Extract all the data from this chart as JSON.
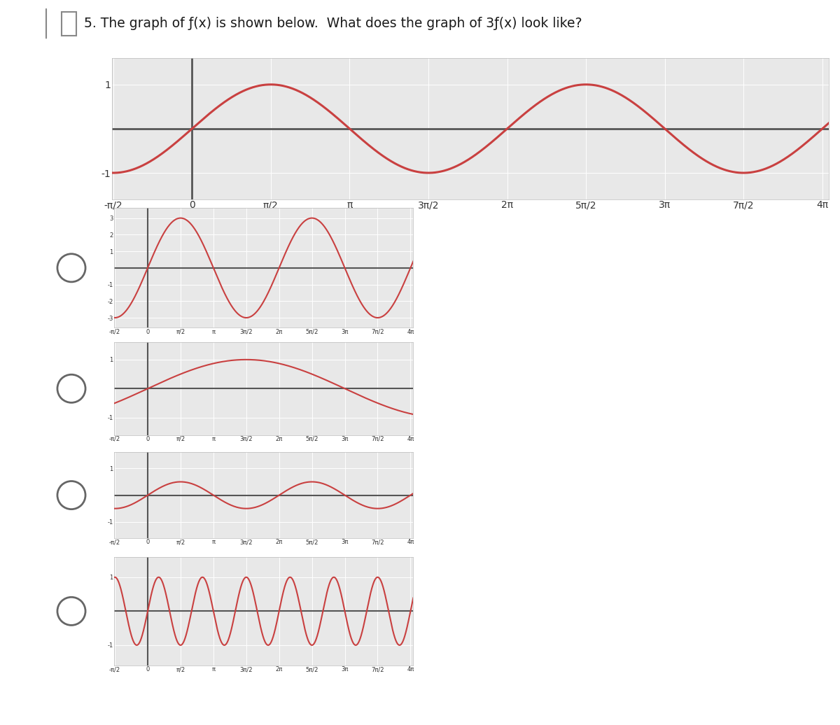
{
  "title_text": "5. The graph of ƒ(x) is shown below.  What does the graph of 3ƒ(x) look like?",
  "main_graph": {
    "xlim": [
      -1.6,
      12.7
    ],
    "ylim": [
      -1.6,
      1.6
    ],
    "ytick_vals": [
      -1,
      1
    ],
    "ytick_labels": [
      "-1",
      "1"
    ],
    "xtick_vals": [
      -1.5707963,
      0,
      1.5707963,
      3.1415926,
      4.7123889,
      6.2831853,
      7.8539816,
      9.4247779,
      10.9955743,
      12.5663706
    ],
    "xtick_labels": [
      "-π/2",
      "0",
      "π/2",
      "π",
      "3π/2",
      "2π",
      "5π/2",
      "3π",
      "7π/2",
      "4π"
    ],
    "amplitude": 1.0,
    "omega": 1.0,
    "curve_color": "#c94040",
    "bg_color": "#e8e8e8",
    "axis_lw": 2.0,
    "curve_lw": 2.2,
    "tick_fontsize": 10
  },
  "answer_graphs": [
    {
      "xlim": [
        -1.6,
        12.7
      ],
      "ylim": [
        -3.6,
        3.6
      ],
      "ytick_vals": [
        -3,
        -2,
        -1,
        1,
        2,
        3
      ],
      "ytick_labels": [
        "-3",
        "-2",
        "-1",
        "1",
        "2",
        "3"
      ],
      "xtick_vals": [
        -1.5707963,
        0,
        1.5707963,
        3.1415926,
        4.7123889,
        6.2831853,
        7.8539816,
        9.4247779,
        10.9955743,
        12.5663706
      ],
      "xtick_labels": [
        "-π/2",
        "0",
        "π/2",
        "π",
        "3π/2",
        "2π",
        "5π/2",
        "3π",
        "7π/2",
        "4π"
      ],
      "amplitude": 3.0,
      "omega": 1.0,
      "curve_color": "#c94040",
      "bg_color": "#e8e8e8",
      "axis_lw": 1.5,
      "curve_lw": 1.5,
      "tick_fontsize": 6
    },
    {
      "xlim": [
        -1.6,
        12.7
      ],
      "ylim": [
        -1.6,
        1.6
      ],
      "ytick_vals": [
        -1,
        1
      ],
      "ytick_labels": [
        "-1",
        "1"
      ],
      "xtick_vals": [
        -1.5707963,
        0,
        1.5707963,
        3.1415926,
        4.7123889,
        6.2831853,
        7.8539816,
        9.4247779,
        10.9955743,
        12.5663706
      ],
      "xtick_labels": [
        "-π/2",
        "0",
        "π/2",
        "π",
        "3π/2",
        "2π",
        "5π/2",
        "3π",
        "7π/2",
        "4π"
      ],
      "amplitude": 1.0,
      "omega": 0.3333333,
      "curve_color": "#c94040",
      "bg_color": "#e8e8e8",
      "axis_lw": 1.5,
      "curve_lw": 1.5,
      "tick_fontsize": 6
    },
    {
      "xlim": [
        -1.6,
        12.7
      ],
      "ylim": [
        -1.6,
        1.6
      ],
      "ytick_vals": [
        -1,
        1
      ],
      "ytick_labels": [
        "-1",
        "1"
      ],
      "xtick_vals": [
        -1.5707963,
        0,
        1.5707963,
        3.1415926,
        4.7123889,
        6.2831853,
        7.8539816,
        9.4247779,
        10.9955743,
        12.5663706
      ],
      "xtick_labels": [
        "-π/2",
        "0",
        "π/2",
        "π",
        "3π/2",
        "2π",
        "5π/2",
        "3π",
        "7π/2",
        "4π"
      ],
      "amplitude": 0.5,
      "omega": 1.0,
      "curve_color": "#c94040",
      "bg_color": "#e8e8e8",
      "axis_lw": 1.5,
      "curve_lw": 1.5,
      "tick_fontsize": 6
    },
    {
      "xlim": [
        -1.6,
        12.7
      ],
      "ylim": [
        -1.6,
        1.6
      ],
      "ytick_vals": [
        -1,
        1
      ],
      "ytick_labels": [
        "-1",
        "1"
      ],
      "xtick_vals": [
        -1.5707963,
        0,
        1.5707963,
        3.1415926,
        4.7123889,
        6.2831853,
        7.8539816,
        9.4247779,
        10.9955743,
        12.5663706
      ],
      "xtick_labels": [
        "-π/2",
        "0",
        "π/2",
        "π",
        "3π/2",
        "2π",
        "5π/2",
        "3π",
        "7π/2",
        "4π"
      ],
      "amplitude": 1.0,
      "omega": 3.0,
      "curve_color": "#c94040",
      "bg_color": "#e8e8e8",
      "axis_lw": 1.5,
      "curve_lw": 1.5,
      "tick_fontsize": 6
    }
  ],
  "page_bg": "#ffffff",
  "radio_color": "#666666",
  "radio_lw": 2.0,
  "icon_color": "#888888"
}
